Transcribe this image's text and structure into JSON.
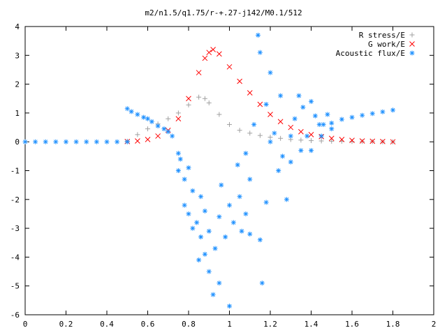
{
  "chart_data": {
    "type": "scatter",
    "title": "m2/n1.5/q1.75/r-+.27-j142/M0.1/512",
    "xlabel": "",
    "ylabel": "",
    "xlim": [
      0,
      2
    ],
    "ylim": [
      -6,
      4
    ],
    "xticks": [
      "0",
      "0.2",
      "0.4",
      "0.6",
      "0.8",
      "1",
      "1.2",
      "1.4",
      "1.6",
      "1.8",
      "2"
    ],
    "yticks": [
      "4",
      "3",
      "2",
      "1",
      "0",
      "-1",
      "-2",
      "-3",
      "-4",
      "-5",
      "-6"
    ],
    "grid": false,
    "legend_position": "top-right",
    "series": [
      {
        "name": "R stress/E",
        "marker": "+",
        "color": "#a0a0a0",
        "x": [
          0.5,
          0.55,
          0.6,
          0.65,
          0.7,
          0.75,
          0.8,
          0.85,
          0.88,
          0.9,
          0.95,
          1.0,
          1.05,
          1.1,
          1.15,
          1.2,
          1.25,
          1.3,
          1.35,
          1.4,
          1.45,
          1.5,
          1.55,
          1.6,
          1.65,
          1.7,
          1.75,
          1.8
        ],
        "y": [
          0.02,
          0.25,
          0.45,
          0.62,
          0.8,
          1.0,
          1.28,
          1.55,
          1.5,
          1.35,
          0.95,
          0.6,
          0.4,
          0.3,
          0.22,
          0.16,
          0.12,
          0.08,
          0.06,
          0.04,
          0.03,
          0.02,
          0.02,
          0.01,
          0.01,
          0.01,
          0.0,
          0.0
        ]
      },
      {
        "name": "G work/E",
        "marker": "x",
        "color": "#ff0000",
        "x": [
          0.5,
          0.55,
          0.6,
          0.65,
          0.7,
          0.75,
          0.8,
          0.85,
          0.88,
          0.9,
          0.92,
          0.95,
          1.0,
          1.05,
          1.1,
          1.15,
          1.2,
          1.25,
          1.3,
          1.35,
          1.4,
          1.45,
          1.5,
          1.55,
          1.6,
          1.65,
          1.7,
          1.75,
          1.8
        ],
        "y": [
          0.01,
          0.03,
          0.08,
          0.2,
          0.4,
          0.8,
          1.5,
          2.4,
          2.9,
          3.1,
          3.2,
          3.05,
          2.6,
          2.1,
          1.7,
          1.3,
          0.95,
          0.7,
          0.5,
          0.35,
          0.25,
          0.18,
          0.12,
          0.08,
          0.05,
          0.03,
          0.02,
          0.01,
          0.0
        ]
      },
      {
        "name": "Acoustic flux/E",
        "marker": "*",
        "color": "#1e90ff",
        "x": [
          0.0,
          0.05,
          0.1,
          0.15,
          0.2,
          0.25,
          0.3,
          0.35,
          0.4,
          0.45,
          0.5,
          0.5,
          0.52,
          0.55,
          0.58,
          0.6,
          0.62,
          0.65,
          0.68,
          0.7,
          0.72,
          0.75,
          0.75,
          0.76,
          0.78,
          0.78,
          0.8,
          0.8,
          0.82,
          0.82,
          0.84,
          0.85,
          0.86,
          0.86,
          0.88,
          0.88,
          0.9,
          0.9,
          0.92,
          0.93,
          0.95,
          0.95,
          0.96,
          0.98,
          1.0,
          1.0,
          1.02,
          1.04,
          1.05,
          1.06,
          1.08,
          1.08,
          1.1,
          1.1,
          1.12,
          1.14,
          1.15,
          1.15,
          1.16,
          1.18,
          1.18,
          1.2,
          1.2,
          1.22,
          1.24,
          1.25,
          1.26,
          1.28,
          1.3,
          1.3,
          1.32,
          1.34,
          1.35,
          1.36,
          1.38,
          1.4,
          1.4,
          1.42,
          1.44,
          1.45,
          1.46,
          1.48,
          1.5,
          1.5,
          1.55,
          1.6,
          1.65,
          1.7,
          1.75,
          1.8
        ],
        "y": [
          0.0,
          0.0,
          0.0,
          0.0,
          0.0,
          0.0,
          0.0,
          0.0,
          0.0,
          0.0,
          0.0,
          1.15,
          1.05,
          0.95,
          0.85,
          0.8,
          0.7,
          0.55,
          0.45,
          0.35,
          0.2,
          -0.4,
          -1.0,
          -0.6,
          -1.3,
          -2.2,
          -2.5,
          -0.9,
          -1.7,
          -3.0,
          -2.8,
          -4.1,
          -3.3,
          -1.9,
          -3.9,
          -2.4,
          -4.5,
          -3.1,
          -5.3,
          -3.7,
          -4.9,
          -2.6,
          -1.5,
          -3.3,
          -2.2,
          -5.7,
          -2.8,
          -0.8,
          -1.9,
          -3.1,
          -2.5,
          -0.4,
          -1.3,
          -3.2,
          0.6,
          3.7,
          3.1,
          -3.4,
          -4.9,
          -2.1,
          1.3,
          0.0,
          2.4,
          0.3,
          -1.0,
          1.6,
          -0.5,
          -2.0,
          0.2,
          -0.7,
          0.8,
          1.6,
          -0.3,
          1.2,
          0.2,
          -0.3,
          1.4,
          0.9,
          0.6,
          0.2,
          0.6,
          0.95,
          0.65,
          0.45,
          0.78,
          0.85,
          0.92,
          0.98,
          1.04,
          1.1
        ]
      }
    ]
  }
}
